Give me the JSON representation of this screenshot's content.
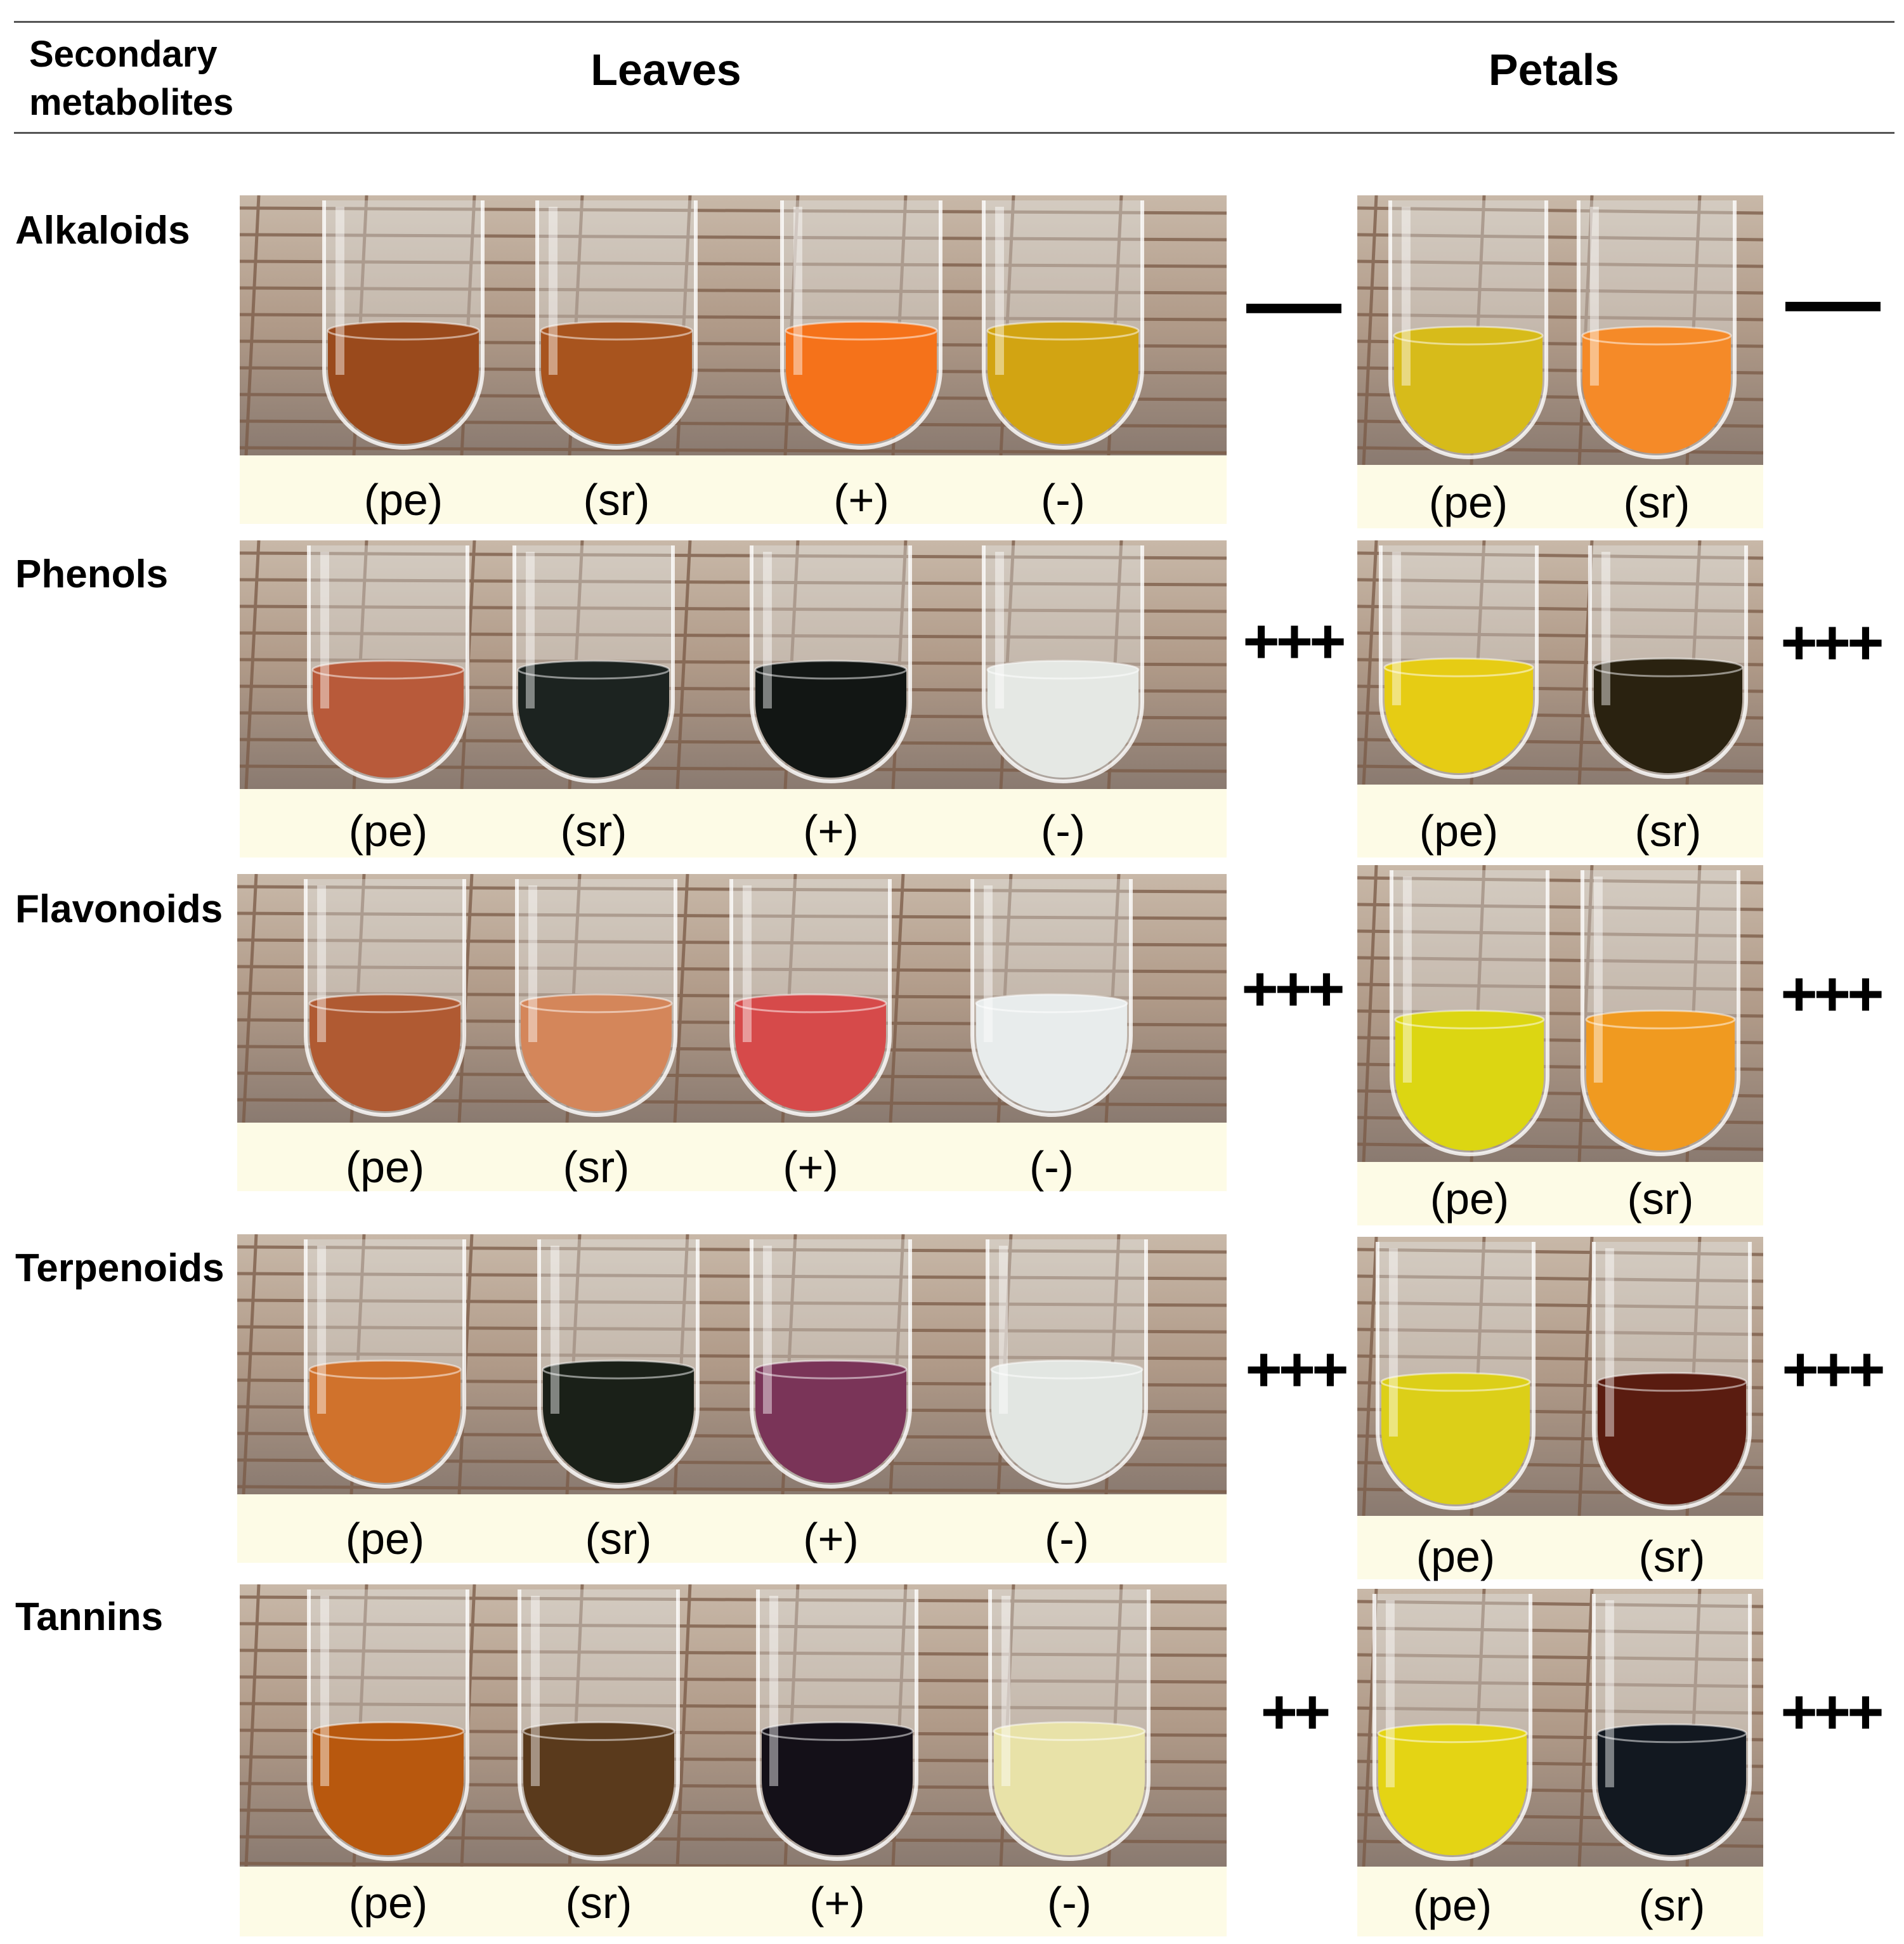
{
  "header": {
    "corner_line1": "Secondary",
    "corner_line2": "metabolites",
    "leaves": "Leaves",
    "petals": "Petals"
  },
  "rows": [
    {
      "name": "Alkaloids",
      "leaves_labels": [
        "(pe)",
        "(sr)",
        "(+)",
        "(-)"
      ],
      "leaves_result": "—",
      "petals_labels": [
        "(pe)",
        "(sr)"
      ],
      "petals_result": "—",
      "leaves_colors": [
        "#9a4a1c",
        "#a8541e",
        "#f5721a",
        "#d2a412"
      ],
      "petals_colors": [
        "#d7bb1a",
        "#f58a28"
      ]
    },
    {
      "name": "Phenols",
      "leaves_labels": [
        "(pe)",
        "(sr)",
        "(+)",
        "(-)"
      ],
      "leaves_result": "+++",
      "petals_labels": [
        "(pe)",
        "(sr)"
      ],
      "petals_result": "+++",
      "leaves_colors": [
        "#b85a3a",
        "#1c2320",
        "#121614",
        "#e5e8e4"
      ],
      "petals_colors": [
        "#e6cc14",
        "#2a2210"
      ]
    },
    {
      "name": "Flavonoids",
      "leaves_labels": [
        "(pe)",
        "(sr)",
        "(+)",
        "(-)"
      ],
      "leaves_result": "+++",
      "petals_labels": [
        "(pe)",
        "(sr)"
      ],
      "petals_result": "+++",
      "leaves_colors": [
        "#b05a32",
        "#d4865a",
        "#d64a4a",
        "#e8ecec"
      ],
      "petals_colors": [
        "#dcd612",
        "#f09a20"
      ]
    },
    {
      "name": "Terpenoids",
      "leaves_labels": [
        "(pe)",
        "(sr)",
        "(+)",
        "(-)"
      ],
      "leaves_result": "+++",
      "petals_labels": [
        "(pe)",
        "(sr)"
      ],
      "petals_result": "+++",
      "leaves_colors": [
        "#d0722c",
        "#1a2018",
        "#7a3458",
        "#e2e6e2"
      ],
      "petals_colors": [
        "#dccf18",
        "#5a1c10"
      ]
    },
    {
      "name": "Tannins",
      "leaves_labels": [
        "(pe)",
        "(sr)",
        "(+)",
        "(-)"
      ],
      "leaves_result": "++",
      "petals_labels": [
        "(pe)",
        "(sr)"
      ],
      "petals_result": "+++",
      "leaves_colors": [
        "#b8580e",
        "#5a3a1c",
        "#141018",
        "#e8e2a8"
      ],
      "petals_colors": [
        "#e4d414",
        "#121820"
      ]
    }
  ]
}
